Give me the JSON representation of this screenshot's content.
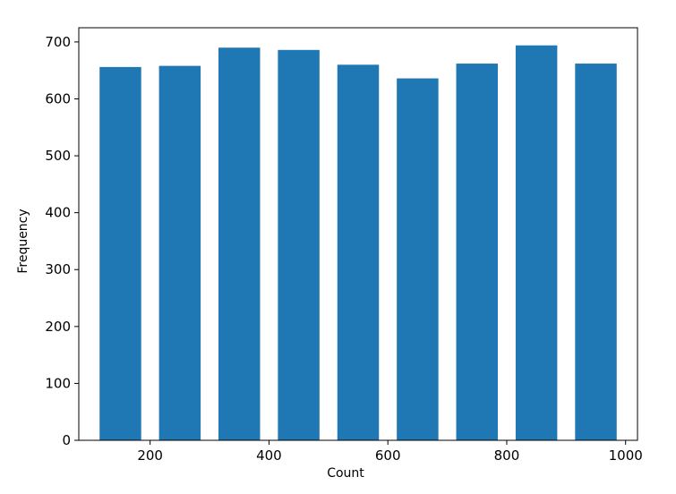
{
  "chart_data": {
    "type": "bar",
    "title": "",
    "xlabel": "Count",
    "ylabel": "Frequency",
    "x": [
      150,
      250,
      350,
      450,
      550,
      650,
      750,
      850,
      950
    ],
    "values": [
      656,
      658,
      690,
      686,
      660,
      636,
      662,
      694,
      662
    ],
    "bar_width": 70,
    "xlim": [
      80,
      1020
    ],
    "ylim": [
      0,
      725
    ],
    "xticks": [
      200,
      400,
      600,
      800,
      1000
    ],
    "yticks": [
      0,
      100,
      200,
      300,
      400,
      500,
      600,
      700
    ],
    "xtick_labels": [
      "200",
      "400",
      "600",
      "800",
      "1000"
    ],
    "ytick_labels": [
      "0",
      "100",
      "200",
      "300",
      "400",
      "500",
      "600",
      "700"
    ],
    "grid": false,
    "bar_color": "#1f77b4"
  }
}
